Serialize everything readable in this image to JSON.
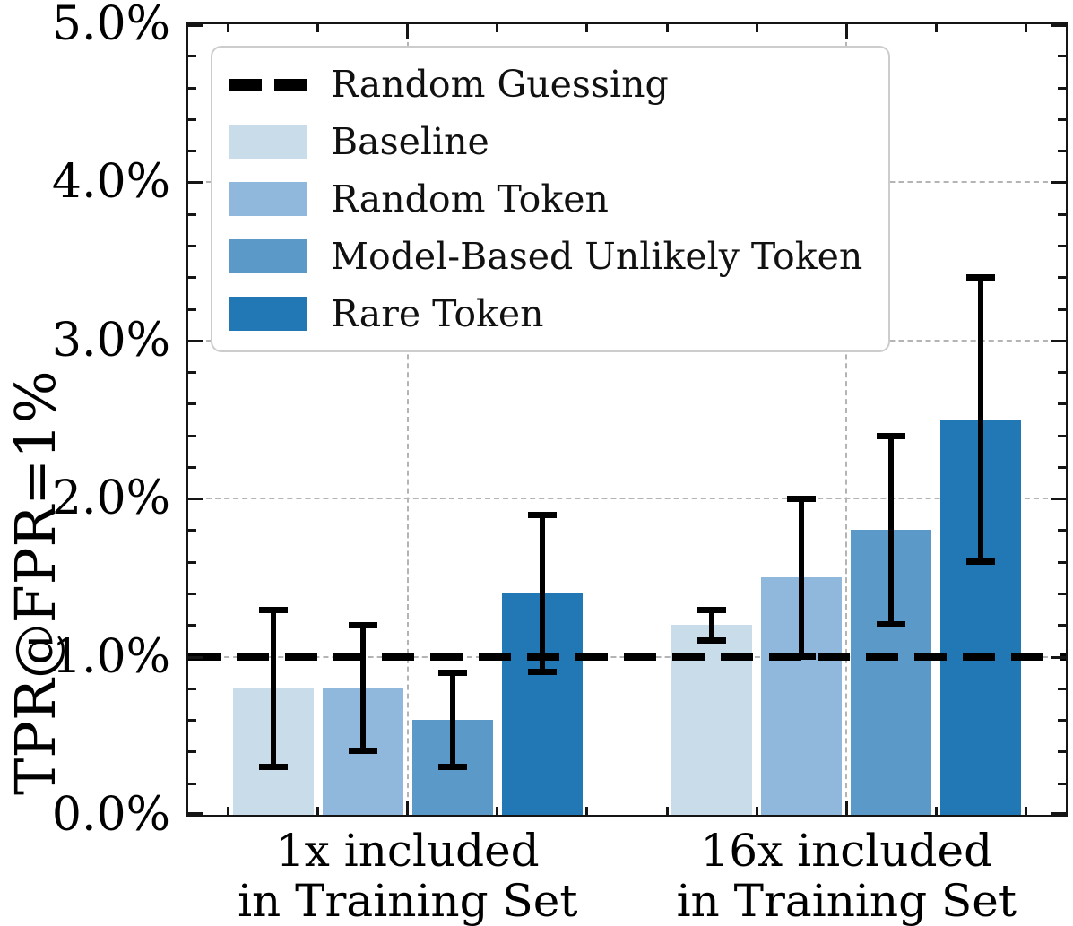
{
  "chart_data": {
    "type": "bar",
    "title": "",
    "ylabel": "TPR@FPR=1%",
    "xlabel": "",
    "categories": [
      "1x included in Training Set",
      "16x included in Training Set"
    ],
    "category_lines": [
      [
        "1x included",
        "in Training Set"
      ],
      [
        "16x included",
        "in Training Set"
      ]
    ],
    "series": [
      {
        "name": "Baseline",
        "color": "#c8dcea",
        "values": [
          0.8,
          1.2
        ],
        "err_low": [
          0.3,
          1.1
        ],
        "err_high": [
          1.3,
          1.3
        ]
      },
      {
        "name": "Random Token",
        "color": "#8fb8dc",
        "values": [
          0.8,
          1.5
        ],
        "err_low": [
          0.4,
          1.0
        ],
        "err_high": [
          1.2,
          2.0
        ]
      },
      {
        "name": "Model-Based Unlikely Token",
        "color": "#5a99c8",
        "values": [
          0.6,
          1.8
        ],
        "err_low": [
          0.3,
          1.2
        ],
        "err_high": [
          0.9,
          2.4
        ]
      },
      {
        "name": "Rare Token",
        "color": "#2278b5",
        "values": [
          1.4,
          2.5
        ],
        "err_low": [
          0.9,
          1.6
        ],
        "err_high": [
          1.9,
          3.4
        ]
      }
    ],
    "reference_line": {
      "label": "Random Guessing",
      "value": 1.0,
      "color": "#000000",
      "style": "dashed"
    },
    "ylim": [
      0,
      5
    ],
    "yticks": [
      0,
      1,
      2,
      3,
      4,
      5
    ],
    "ytick_labels": [
      "0.0%",
      "1.0%",
      "2.0%",
      "3.0%",
      "4.0%",
      "5.0%"
    ],
    "y_minor_step": 0.2,
    "grid": true,
    "legend_position": "upper left",
    "units": "%"
  }
}
